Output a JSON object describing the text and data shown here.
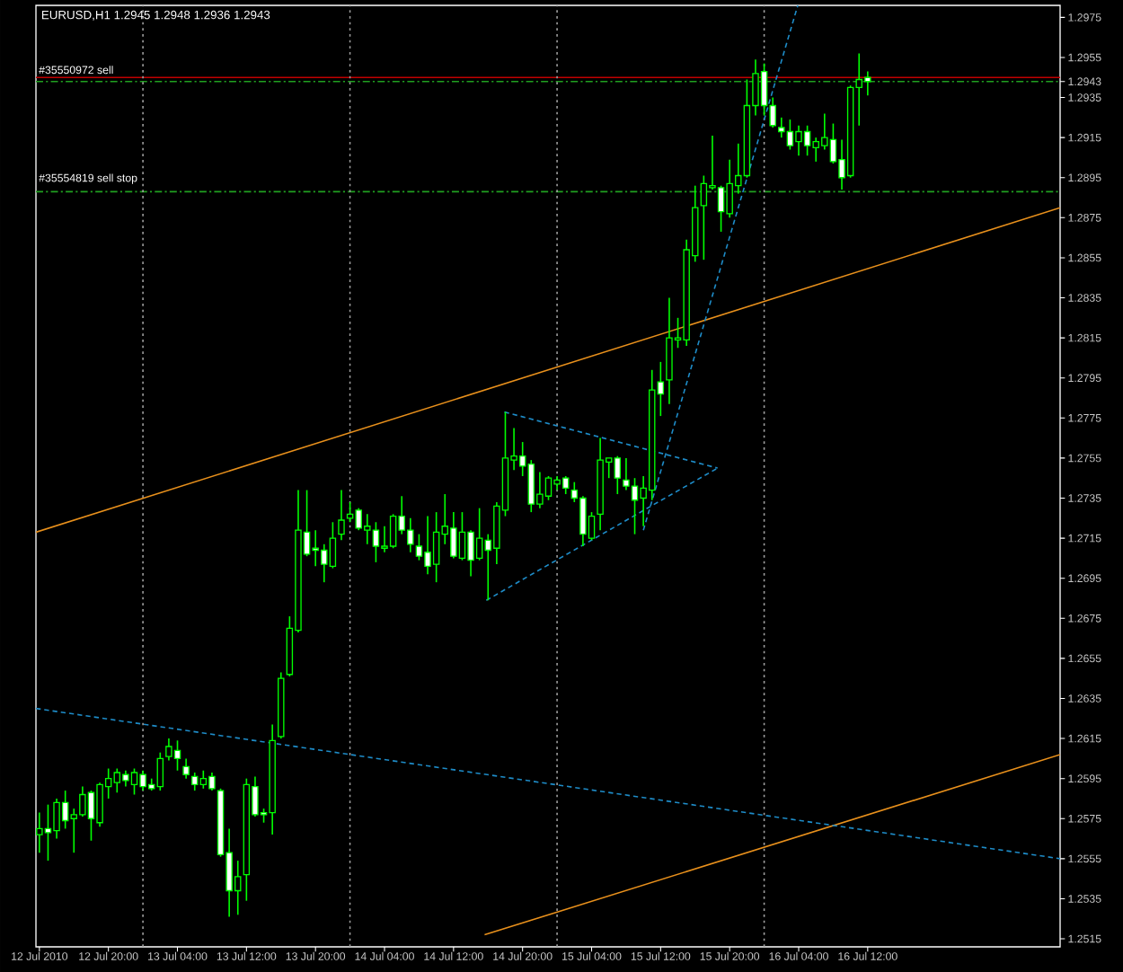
{
  "chart_data": {
    "type": "candlestick",
    "title": "EURUSD,H1 1.2945 1.2948 1.2936 1.2943",
    "color": "#00ff00",
    "colors": [
      "#000000",
      "#ffffff",
      "#000000",
      "#ffffff",
      "#000000",
      "#000000",
      "#ffffff",
      "#000000",
      "#000000",
      "#000000",
      "#ffffff",
      "#000000",
      "#ffffff",
      "#ffffff",
      "#000000",
      "#000000",
      "#ffffff",
      "#ffffff",
      "#ffffff",
      "#000000",
      "#ffffff",
      "#ffffff",
      "#ffffff",
      "#000000",
      "#000000",
      "#ffffff",
      "#ffffff",
      "#000000",
      "#000000",
      "#000000",
      "#000000",
      "#ffffff",
      "#ffffff",
      "#ffffff",
      "#000000",
      "#000000",
      "#000000",
      "#ffffff",
      "#000000",
      "#ffffff",
      "#000000",
      "#000000",
      "#ffffff",
      "#ffffff",
      "#ffffff",
      "#ffffff",
      "#000000",
      "#000000",
      "#ffffff",
      "#000000",
      "#ffffff",
      "#000000",
      "#ffffff",
      "#000000",
      "#000000",
      "#000000",
      "#ffffff",
      "#ffffff",
      "#000000",
      "#000000",
      "#000000",
      "#ffffff",
      "#ffffff",
      "#ffffff",
      "#000000",
      "#000000",
      "#000000",
      "#ffffff",
      "#ffffff",
      "#ffffff",
      "#000000",
      "#000000",
      "#ffffff",
      "#000000",
      "#000000",
      "#000000",
      "#000000",
      "#000000",
      "#000000",
      "#ffffff",
      "#000000",
      "#000000",
      "#000000",
      "#000000",
      "#ffffff",
      "#ffffff",
      "#ffffff",
      "#ffffff",
      "#000000",
      "#ffffff",
      "#000000",
      "#000000",
      "#ffffff",
      "#ffffff",
      "#000000",
      "#000000",
      "#ffffff"
    ],
    "x": [
      "2010-07-12T12:00",
      "2010-07-12T13:00",
      "2010-07-12T14:00",
      "2010-07-12T15:00",
      "2010-07-12T16:00",
      "2010-07-12T17:00",
      "2010-07-12T18:00",
      "2010-07-12T19:00",
      "2010-07-12T20:00",
      "2010-07-12T21:00",
      "2010-07-12T22:00",
      "2010-07-12T23:00",
      "2010-07-13T00:00",
      "2010-07-13T01:00",
      "2010-07-13T02:00",
      "2010-07-13T03:00",
      "2010-07-13T04:00",
      "2010-07-13T05:00",
      "2010-07-13T06:00",
      "2010-07-13T07:00",
      "2010-07-13T08:00",
      "2010-07-13T09:00",
      "2010-07-13T10:00",
      "2010-07-13T11:00",
      "2010-07-13T12:00",
      "2010-07-13T13:00",
      "2010-07-13T14:00",
      "2010-07-13T15:00",
      "2010-07-13T16:00",
      "2010-07-13T17:00",
      "2010-07-13T18:00",
      "2010-07-13T19:00",
      "2010-07-13T20:00",
      "2010-07-13T21:00",
      "2010-07-13T22:00",
      "2010-07-13T23:00",
      "2010-07-14T00:00",
      "2010-07-14T01:00",
      "2010-07-14T02:00",
      "2010-07-14T03:00",
      "2010-07-14T04:00",
      "2010-07-14T05:00",
      "2010-07-14T06:00",
      "2010-07-14T07:00",
      "2010-07-14T08:00",
      "2010-07-14T09:00",
      "2010-07-14T10:00",
      "2010-07-14T11:00",
      "2010-07-14T12:00",
      "2010-07-14T13:00",
      "2010-07-14T14:00",
      "2010-07-14T15:00",
      "2010-07-14T16:00",
      "2010-07-14T17:00",
      "2010-07-14T18:00",
      "2010-07-14T19:00",
      "2010-07-14T20:00",
      "2010-07-14T21:00",
      "2010-07-14T22:00",
      "2010-07-14T23:00",
      "2010-07-15T00:00",
      "2010-07-15T01:00",
      "2010-07-15T02:00",
      "2010-07-15T03:00",
      "2010-07-15T04:00",
      "2010-07-15T05:00",
      "2010-07-15T06:00",
      "2010-07-15T07:00",
      "2010-07-15T08:00",
      "2010-07-15T09:00",
      "2010-07-15T10:00",
      "2010-07-15T11:00",
      "2010-07-15T12:00",
      "2010-07-15T13:00",
      "2010-07-15T14:00",
      "2010-07-15T15:00",
      "2010-07-15T16:00",
      "2010-07-15T17:00",
      "2010-07-15T18:00",
      "2010-07-15T19:00",
      "2010-07-15T20:00",
      "2010-07-15T21:00",
      "2010-07-15T22:00",
      "2010-07-15T23:00",
      "2010-07-16T00:00",
      "2010-07-16T01:00",
      "2010-07-16T02:00",
      "2010-07-16T03:00",
      "2010-07-16T04:00",
      "2010-07-16T05:00",
      "2010-07-16T06:00",
      "2010-07-16T07:00",
      "2010-07-16T08:00",
      "2010-07-16T09:00",
      "2010-07-16T10:00",
      "2010-07-16T11:00",
      "2010-07-16T12:00"
    ],
    "ohlc": [
      [
        1.2567,
        1.2578,
        1.2558,
        1.257
      ],
      [
        1.257,
        1.2582,
        1.2554,
        1.2568
      ],
      [
        1.2569,
        1.2585,
        1.2565,
        1.2583
      ],
      [
        1.2583,
        1.2589,
        1.257,
        1.2574
      ],
      [
        1.2575,
        1.258,
        1.2558,
        1.2577
      ],
      [
        1.2577,
        1.2591,
        1.2576,
        1.2587
      ],
      [
        1.2588,
        1.2589,
        1.2564,
        1.2575
      ],
      [
        1.2573,
        1.2593,
        1.2571,
        1.2592
      ],
      [
        1.2591,
        1.26,
        1.2585,
        1.2595
      ],
      [
        1.2593,
        1.26,
        1.2588,
        1.2598
      ],
      [
        1.2597,
        1.2599,
        1.2591,
        1.2594
      ],
      [
        1.2592,
        1.26,
        1.2587,
        1.2598
      ],
      [
        1.2597,
        1.2599,
        1.2589,
        1.2591
      ],
      [
        1.2592,
        1.2595,
        1.2589,
        1.259
      ],
      [
        1.2591,
        1.2608,
        1.2589,
        1.2605
      ],
      [
        1.2606,
        1.2615,
        1.2604,
        1.2611
      ],
      [
        1.2609,
        1.2614,
        1.2599,
        1.2605
      ],
      [
        1.2601,
        1.2605,
        1.2595,
        1.2597
      ],
      [
        1.2596,
        1.2598,
        1.2589,
        1.2592
      ],
      [
        1.2592,
        1.2599,
        1.259,
        1.2595
      ],
      [
        1.2596,
        1.2598,
        1.2589,
        1.259
      ],
      [
        1.2589,
        1.259,
        1.2556,
        1.2557
      ],
      [
        1.2558,
        1.257,
        1.2526,
        1.2539
      ],
      [
        1.2539,
        1.2554,
        1.2527,
        1.2546
      ],
      [
        1.2547,
        1.2595,
        1.2534,
        1.2592
      ],
      [
        1.2591,
        1.2596,
        1.2576,
        1.2577
      ],
      [
        1.2578,
        1.258,
        1.2573,
        1.2577
      ],
      [
        1.2578,
        1.2622,
        1.2567,
        1.2614
      ],
      [
        1.2616,
        1.2648,
        1.2615,
        1.2645
      ],
      [
        1.2647,
        1.2676,
        1.2646,
        1.267
      ],
      [
        1.2669,
        1.2739,
        1.2668,
        1.2719
      ],
      [
        1.2718,
        1.2739,
        1.2706,
        1.2707
      ],
      [
        1.271,
        1.2719,
        1.2701,
        1.2709
      ],
      [
        1.2709,
        1.2712,
        1.2693,
        1.2702
      ],
      [
        1.2701,
        1.2723,
        1.27,
        1.2715
      ],
      [
        1.2717,
        1.2739,
        1.2714,
        1.2724
      ],
      [
        1.2725,
        1.2733,
        1.2723,
        1.2727
      ],
      [
        1.2729,
        1.273,
        1.2719,
        1.272
      ],
      [
        1.2719,
        1.2727,
        1.2712,
        1.2721
      ],
      [
        1.2719,
        1.2723,
        1.2703,
        1.2711
      ],
      [
        1.271,
        1.2721,
        1.2708,
        1.2711
      ],
      [
        1.2711,
        1.2727,
        1.271,
        1.2726
      ],
      [
        1.2726,
        1.2736,
        1.2717,
        1.2719
      ],
      [
        1.2719,
        1.2725,
        1.2708,
        1.2712
      ],
      [
        1.2711,
        1.2717,
        1.2704,
        1.2706
      ],
      [
        1.2708,
        1.2726,
        1.2697,
        1.2701
      ],
      [
        1.2702,
        1.2728,
        1.2693,
        1.2718
      ],
      [
        1.2717,
        1.2737,
        1.2712,
        1.2721
      ],
      [
        1.272,
        1.2728,
        1.2705,
        1.2706
      ],
      [
        1.2705,
        1.2728,
        1.2704,
        1.2718
      ],
      [
        1.2718,
        1.2719,
        1.2696,
        1.2704
      ],
      [
        1.2705,
        1.273,
        1.2704,
        1.2715
      ],
      [
        1.2714,
        1.2717,
        1.2684,
        1.2709
      ],
      [
        1.271,
        1.2733,
        1.2702,
        1.2731
      ],
      [
        1.2729,
        1.2778,
        1.2726,
        1.2755
      ],
      [
        1.2754,
        1.277,
        1.2749,
        1.2756
      ],
      [
        1.2756,
        1.2763,
        1.2746,
        1.2751
      ],
      [
        1.2752,
        1.2754,
        1.2728,
        1.2732
      ],
      [
        1.2732,
        1.2748,
        1.273,
        1.2737
      ],
      [
        1.2736,
        1.2746,
        1.2734,
        1.2745
      ],
      [
        1.2742,
        1.2746,
        1.2739,
        1.2744
      ],
      [
        1.2745,
        1.2746,
        1.2737,
        1.274
      ],
      [
        1.2739,
        1.2743,
        1.2733,
        1.2735
      ],
      [
        1.2735,
        1.2736,
        1.2711,
        1.2717
      ],
      [
        1.2715,
        1.2728,
        1.2714,
        1.2726
      ],
      [
        1.2727,
        1.2765,
        1.2719,
        1.2754
      ],
      [
        1.2753,
        1.2755,
        1.2745,
        1.2755
      ],
      [
        1.2755,
        1.2756,
        1.2737,
        1.2745
      ],
      [
        1.2744,
        1.2755,
        1.2739,
        1.2741
      ],
      [
        1.2741,
        1.2745,
        1.2717,
        1.2734
      ],
      [
        1.2735,
        1.2746,
        1.2721,
        1.274
      ],
      [
        1.2739,
        1.2799,
        1.2734,
        1.2789
      ],
      [
        1.2793,
        1.2803,
        1.2776,
        1.2787
      ],
      [
        1.2794,
        1.2835,
        1.2782,
        1.2815
      ],
      [
        1.2814,
        1.2825,
        1.281,
        1.2815
      ],
      [
        1.2814,
        1.2864,
        1.2811,
        1.2859
      ],
      [
        1.2856,
        1.2891,
        1.2853,
        1.288
      ],
      [
        1.2881,
        1.2896,
        1.2854,
        1.2892
      ],
      [
        1.289,
        1.2916,
        1.2889,
        1.2891
      ],
      [
        1.289,
        1.2891,
        1.2868,
        1.2878
      ],
      [
        1.2877,
        1.2904,
        1.2875,
        1.2892
      ],
      [
        1.2891,
        1.2912,
        1.2887,
        1.2896
      ],
      [
        1.2896,
        1.2944,
        1.2895,
        1.2931
      ],
      [
        1.2931,
        1.2954,
        1.2926,
        1.2947
      ],
      [
        1.2948,
        1.2952,
        1.2926,
        1.2931
      ],
      [
        1.2931,
        1.2935,
        1.292,
        1.2921
      ],
      [
        1.292,
        1.2925,
        1.2915,
        1.2918
      ],
      [
        1.2918,
        1.2924,
        1.2909,
        1.2911
      ],
      [
        1.2913,
        1.2921,
        1.2906,
        1.2918
      ],
      [
        1.2918,
        1.2921,
        1.2906,
        1.2911
      ],
      [
        1.291,
        1.2915,
        1.2903,
        1.2913
      ],
      [
        1.2911,
        1.2927,
        1.2909,
        1.2915
      ],
      [
        1.2914,
        1.2922,
        1.2902,
        1.2903
      ],
      [
        1.2904,
        1.2914,
        1.2889,
        1.2895
      ],
      [
        1.2896,
        1.2941,
        1.2895,
        1.294
      ],
      [
        1.294,
        1.2957,
        1.2921,
        1.2944
      ],
      [
        1.2945,
        1.2948,
        1.2936,
        1.2943
      ]
    ],
    "series": [
      {
        "type": "line",
        "color": "#e8901c",
        "line_style": "solid",
        "x": [
          "2010-07-12T11:36",
          "2010-07-17T10:18"
        ],
        "values": [
          1.2718,
          1.288
        ]
      },
      {
        "type": "line",
        "color": "#e8901c",
        "line_style": "solid",
        "x": [
          "2010-07-14T15:36",
          "2010-07-17T10:18"
        ],
        "values": [
          1.2517,
          1.2607
        ]
      },
      {
        "type": "line",
        "color": "#1e8cc8",
        "line_style": "dashed",
        "x": [
          "2010-07-12T11:36",
          "2010-07-17T10:18"
        ],
        "values": [
          1.263,
          1.2555
        ]
      },
      {
        "type": "line",
        "color": "#1e8cc8",
        "line_style": "dashed",
        "x": [
          "2010-07-15T10:00",
          "2010-07-16T03:54"
        ],
        "values": [
          1.2719,
          1.2981
        ]
      },
      {
        "type": "line",
        "color": "#1e8cc8",
        "line_style": "dashed",
        "x": [
          "2010-07-14T17:54",
          "2010-07-15T18:36"
        ],
        "values": [
          1.2778,
          1.275
        ]
      },
      {
        "type": "line",
        "color": "#1e8cc8",
        "line_style": "dashed",
        "x": [
          "2010-07-14T15:48",
          "2010-07-15T18:36"
        ],
        "values": [
          1.2684,
          1.275
        ]
      }
    ],
    "ref_lines": [
      {
        "axis": "y",
        "value": 1.2945,
        "color": "#c00000",
        "line_style": "solid"
      },
      {
        "axis": "y",
        "value": 1.2943,
        "label": "#35550972 sell",
        "color": "#20a020",
        "line_style": "dashdot"
      },
      {
        "axis": "y",
        "value": 1.2888,
        "label": "#35554819 sell stop",
        "color": "#20a020",
        "line_style": "dashdot"
      },
      {
        "axis": "x",
        "value": "2010-07-13T00:00",
        "color": "#a0a0a0",
        "line_style": "dotted"
      },
      {
        "axis": "x",
        "value": "2010-07-14T00:00",
        "color": "#a0a0a0",
        "line_style": "dotted"
      },
      {
        "axis": "x",
        "value": "2010-07-15T00:00",
        "color": "#a0a0a0",
        "line_style": "dotted"
      },
      {
        "axis": "x",
        "value": "2010-07-16T00:00",
        "color": "#a0a0a0",
        "line_style": "dotted"
      }
    ],
    "xlim": [
      "2010-07-12T11:36",
      "2010-07-17T10:18"
    ],
    "ylim": [
      1.2511,
      1.2981
    ],
    "xticks": [
      {
        "value": "2010-07-12T12:00",
        "label": "12 Jul 2010"
      },
      {
        "value": "2010-07-12T20:00",
        "label": "12 Jul 20:00"
      },
      {
        "value": "2010-07-13T04:00",
        "label": "13 Jul 04:00"
      },
      {
        "value": "2010-07-13T12:00",
        "label": "13 Jul 12:00"
      },
      {
        "value": "2010-07-13T20:00",
        "label": "13 Jul 20:00"
      },
      {
        "value": "2010-07-14T04:00",
        "label": "14 Jul 04:00"
      },
      {
        "value": "2010-07-14T12:00",
        "label": "14 Jul 12:00"
      },
      {
        "value": "2010-07-14T20:00",
        "label": "14 Jul 20:00"
      },
      {
        "value": "2010-07-15T04:00",
        "label": "15 Jul 04:00"
      },
      {
        "value": "2010-07-15T12:00",
        "label": "15 Jul 12:00"
      },
      {
        "value": "2010-07-15T20:00",
        "label": "15 Jul 20:00"
      },
      {
        "value": "2010-07-16T04:00",
        "label": "16 Jul 04:00"
      },
      {
        "value": "2010-07-16T12:00",
        "label": "16 Jul 12:00"
      }
    ],
    "yticks": [
      1.2975,
      1.2955,
      1.2943,
      1.2935,
      1.2915,
      1.2895,
      1.2875,
      1.2855,
      1.2835,
      1.2815,
      1.2795,
      1.2775,
      1.2755,
      1.2735,
      1.2715,
      1.2695,
      1.2675,
      1.2655,
      1.2635,
      1.2615,
      1.2595,
      1.2575,
      1.2555,
      1.2535,
      1.2515
    ],
    "grid": false
  }
}
